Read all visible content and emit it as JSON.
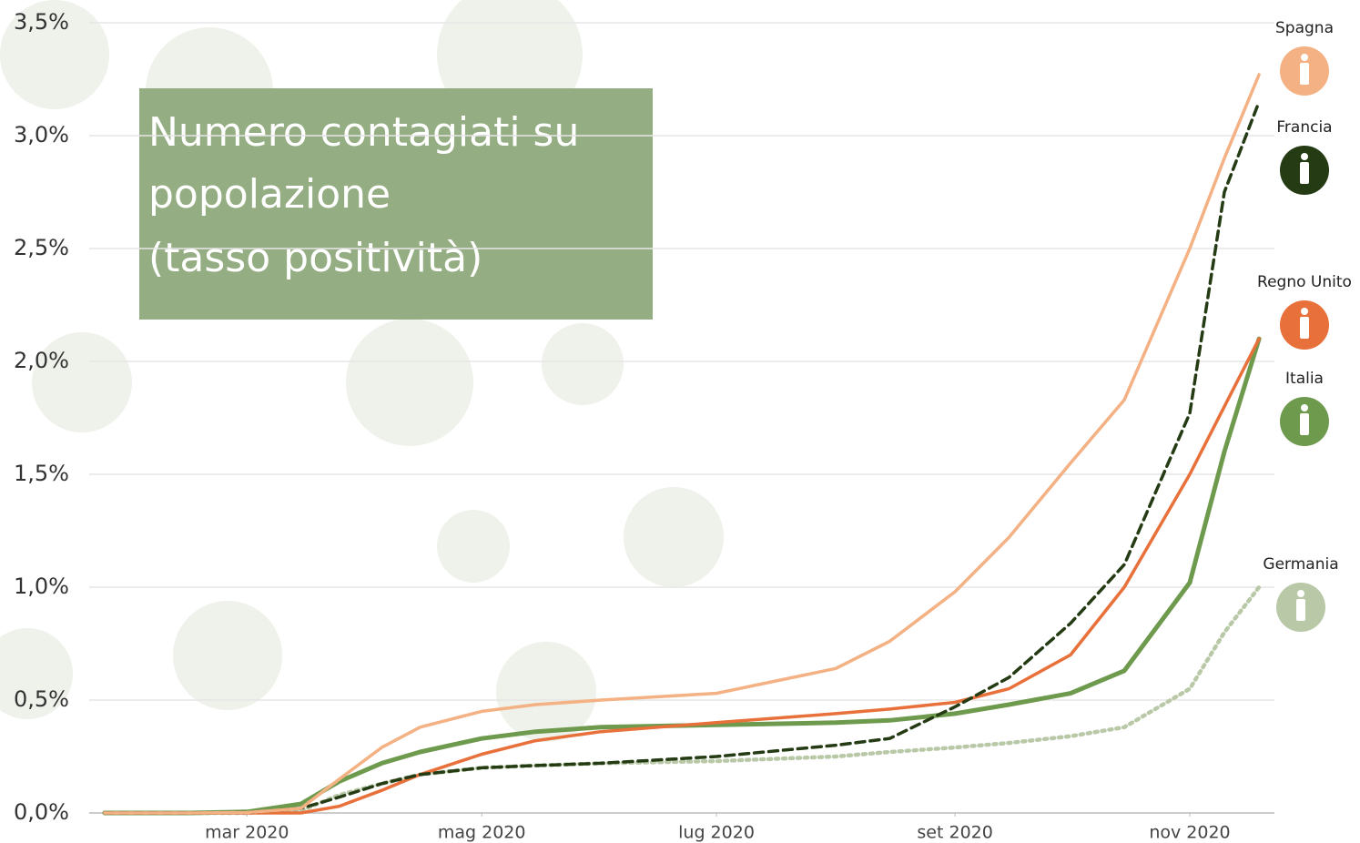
{
  "chart_data": {
    "type": "line",
    "title": [
      "Numero contagiati su",
      "popolazione",
      "(tasso positività)"
    ],
    "x": [
      "2020-01-24",
      "2020-02-15",
      "2020-03-01",
      "2020-03-15",
      "2020-03-25",
      "2020-04-05",
      "2020-04-15",
      "2020-05-01",
      "2020-05-15",
      "2020-06-01",
      "2020-07-01",
      "2020-08-01",
      "2020-08-15",
      "2020-09-01",
      "2020-09-15",
      "2020-10-01",
      "2020-10-15",
      "2020-11-01",
      "2020-11-10",
      "2020-11-19"
    ],
    "series": [
      {
        "name": "Spagna",
        "color": "#f4b183",
        "style": "solid",
        "values": [
          0,
          0,
          0.002,
          0.02,
          0.15,
          0.29,
          0.38,
          0.45,
          0.48,
          0.5,
          0.53,
          0.64,
          0.76,
          0.98,
          1.22,
          1.55,
          1.83,
          2.5,
          2.9,
          3.27
        ]
      },
      {
        "name": "Francia",
        "color": "#243b14",
        "style": "dashed",
        "values": [
          0,
          0,
          0.002,
          0.02,
          0.07,
          0.13,
          0.17,
          0.2,
          0.21,
          0.22,
          0.25,
          0.3,
          0.33,
          0.47,
          0.6,
          0.84,
          1.1,
          1.77,
          2.75,
          3.15
        ]
      },
      {
        "name": "Regno Unito",
        "color": "#e8703a",
        "style": "solid",
        "values": [
          0,
          0,
          0,
          0,
          0.03,
          0.1,
          0.17,
          0.26,
          0.32,
          0.36,
          0.4,
          0.44,
          0.46,
          0.49,
          0.55,
          0.7,
          1.0,
          1.5,
          1.8,
          2.1
        ]
      },
      {
        "name": "Italia",
        "color": "#6e9a4e",
        "style": "thick",
        "values": [
          0,
          0,
          0.005,
          0.04,
          0.14,
          0.22,
          0.27,
          0.33,
          0.36,
          0.38,
          0.39,
          0.4,
          0.41,
          0.44,
          0.48,
          0.53,
          0.63,
          1.02,
          1.6,
          2.1
        ]
      },
      {
        "name": "Germania",
        "color": "#b9c9a8",
        "style": "dotted",
        "values": [
          0,
          0,
          0,
          0.01,
          0.08,
          0.13,
          0.17,
          0.2,
          0.21,
          0.22,
          0.23,
          0.25,
          0.27,
          0.29,
          0.31,
          0.34,
          0.38,
          0.55,
          0.8,
          1.0
        ]
      }
    ],
    "xlim": [
      "2020-01-20",
      "2020-11-23"
    ],
    "xticks": [
      {
        "value": "2020-03-01",
        "label": "mar 2020"
      },
      {
        "value": "2020-05-01",
        "label": "mag 2020"
      },
      {
        "value": "2020-07-01",
        "label": "lug 2020"
      },
      {
        "value": "2020-09-01",
        "label": "set 2020"
      },
      {
        "value": "2020-11-01",
        "label": "nov 2020"
      }
    ],
    "ylim": [
      0,
      3.5
    ],
    "yticks": [
      {
        "value": 0,
        "label": "0,0%"
      },
      {
        "value": 0.5,
        "label": "0,5%"
      },
      {
        "value": 1,
        "label": "1,0%"
      },
      {
        "value": 1.5,
        "label": "1,5%"
      },
      {
        "value": 2,
        "label": "2,0%"
      },
      {
        "value": 2.5,
        "label": "2,5%"
      },
      {
        "value": 3,
        "label": "3,0%"
      },
      {
        "value": 3.5,
        "label": "3,5%"
      }
    ],
    "grid": true
  }
}
